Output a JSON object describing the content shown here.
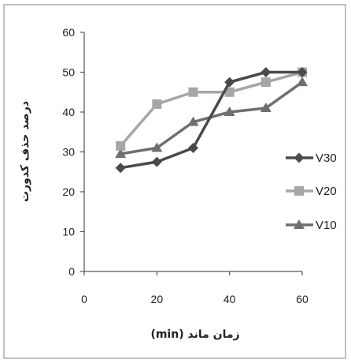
{
  "chart_data": {
    "type": "line",
    "xlabel": "زمان ماند (min)",
    "ylabel": "درصد حذف کدورت",
    "xlim": [
      0,
      60
    ],
    "ylim": [
      0,
      60
    ],
    "x_ticks": [
      "0",
      "20",
      "40",
      "60"
    ],
    "y_ticks": [
      "0",
      "10",
      "20",
      "30",
      "40",
      "50",
      "60"
    ],
    "grid": false,
    "legend_position": "right",
    "series": [
      {
        "name": "V30",
        "marker": "diamond",
        "color": "#4a4a4a",
        "x": [
          10,
          20,
          30,
          40,
          50,
          60
        ],
        "y": [
          26,
          27.5,
          31,
          47.5,
          50,
          50
        ]
      },
      {
        "name": "V20",
        "marker": "square",
        "color": "#a6a6a6",
        "x": [
          10,
          20,
          30,
          40,
          50,
          60
        ],
        "y": [
          31.5,
          42,
          45,
          45,
          47.5,
          50
        ]
      },
      {
        "name": "V10",
        "marker": "triangle",
        "color": "#6f6f6f",
        "x": [
          10,
          20,
          30,
          40,
          50,
          60
        ],
        "y": [
          29.5,
          31,
          37.5,
          40,
          41,
          47.5
        ]
      }
    ]
  }
}
